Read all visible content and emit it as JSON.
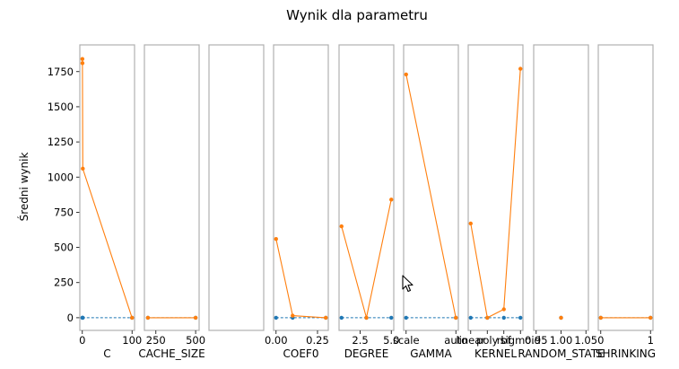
{
  "chart_data": {
    "type": "line",
    "title": "Wynik dla parametru",
    "ylabel": "Średni wynik",
    "ylim": [
      -90,
      1940
    ],
    "yticks": [
      0,
      250,
      500,
      750,
      1000,
      1250,
      1500,
      1750
    ],
    "colors": {
      "mean_score": "#ff7f0e",
      "baseline": "#1f77b4",
      "frame": "#b0b0b0"
    },
    "panels": [
      {
        "xlabel": "C",
        "xscale": "linear",
        "xlim": [
          -5,
          105
        ],
        "xticks": [
          {
            "v": 0,
            "label": "0"
          },
          {
            "v": 100,
            "label": "100"
          }
        ],
        "x": [
          0.1,
          0.3,
          1,
          100
        ],
        "values": [
          1840,
          1810,
          1060,
          0
        ],
        "baseline": [
          0,
          0,
          0,
          0
        ]
      },
      {
        "xlabel": "CACHE_SIZE",
        "xscale": "linear",
        "xlim": [
          178,
          522
        ],
        "xticks": [
          {
            "v": 250,
            "label": "250"
          },
          {
            "v": 500,
            "label": "500"
          }
        ],
        "x": [
          200,
          500
        ],
        "values": [
          0,
          0
        ],
        "baseline": [
          0,
          0
        ]
      },
      {
        "xlabel": "",
        "xscale": "linear",
        "xlim": [
          0,
          1
        ],
        "xticks": [],
        "x": [],
        "values": [],
        "baseline": []
      },
      {
        "xlabel": "COEF0",
        "xscale": "linear",
        "xlim": [
          -0.015,
          0.315
        ],
        "xticks": [
          {
            "v": 0.0,
            "label": "0.00"
          },
          {
            "v": 0.25,
            "label": "0.25"
          }
        ],
        "x": [
          0.0,
          0.1,
          0.3
        ],
        "values": [
          560,
          15,
          0
        ],
        "baseline": [
          0,
          0,
          0
        ]
      },
      {
        "xlabel": "DEGREE",
        "xscale": "linear",
        "xlim": [
          0.8,
          5.2
        ],
        "xticks": [
          {
            "v": 2.5,
            "label": "2.5"
          },
          {
            "v": 5.0,
            "label": "5.0"
          }
        ],
        "x": [
          1,
          3,
          5
        ],
        "values": [
          650,
          0,
          840
        ],
        "baseline": [
          0,
          0,
          0
        ]
      },
      {
        "xlabel": "GAMMA",
        "xscale": "category",
        "xlim": [
          -0.05,
          1.05
        ],
        "xticks": [
          {
            "v": 0,
            "label": "scale"
          },
          {
            "v": 1,
            "label": "auto"
          }
        ],
        "x": [
          0,
          1
        ],
        "values": [
          1730,
          0
        ],
        "baseline": [
          0,
          0
        ]
      },
      {
        "xlabel": "KERNEL",
        "xscale": "category",
        "xlim": [
          -0.15,
          3.15
        ],
        "xticks": [
          {
            "v": 0,
            "label": "linear"
          },
          {
            "v": 1,
            "label": "poly"
          },
          {
            "v": 2,
            "label": "rbf"
          },
          {
            "v": 3,
            "label": "sigmoid"
          }
        ],
        "x": [
          0,
          1,
          2,
          3
        ],
        "values": [
          670,
          0,
          60,
          1770
        ],
        "baseline": [
          0,
          0,
          0,
          0
        ]
      },
      {
        "xlabel": "RANDOM_STATE",
        "xscale": "linear",
        "xlim": [
          0.945,
          1.055
        ],
        "xticks": [
          {
            "v": 0.95,
            "label": "0.95"
          },
          {
            "v": 1.0,
            "label": "1.00"
          },
          {
            "v": 1.05,
            "label": "1.05"
          }
        ],
        "x": [
          1
        ],
        "values": [
          0
        ],
        "baseline": [
          0
        ]
      },
      {
        "xlabel": "SHRINKING",
        "xscale": "linear",
        "xlim": [
          -0.05,
          1.05
        ],
        "xticks": [
          {
            "v": 0,
            "label": "0"
          },
          {
            "v": 1,
            "label": "1"
          }
        ],
        "x": [
          0,
          1
        ],
        "values": [
          0,
          0
        ],
        "baseline": [
          0,
          0
        ]
      }
    ]
  },
  "cursor_icon": "mouse-pointer-icon"
}
